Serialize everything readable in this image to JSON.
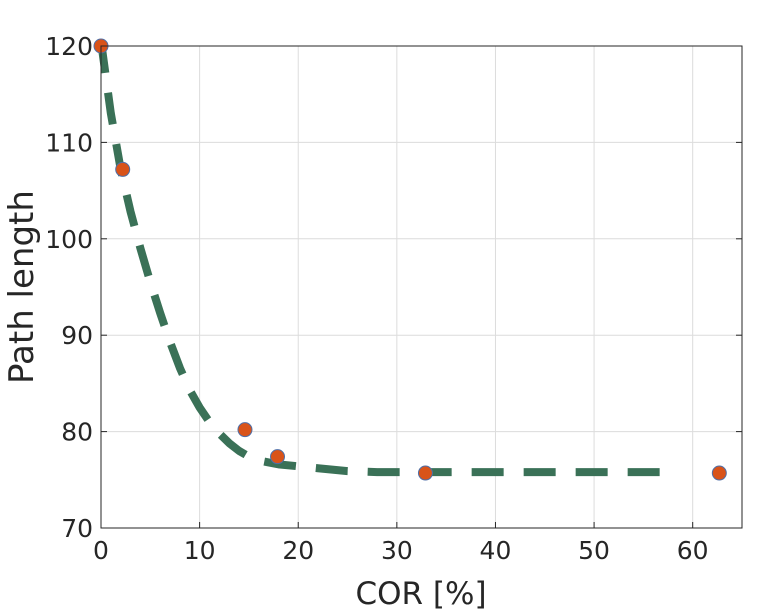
{
  "chart_data": {
    "type": "line",
    "xlabel": "COR [%]",
    "ylabel": "Path length",
    "xlim": [
      0,
      65
    ],
    "ylim": [
      70,
      120
    ],
    "xticks": [
      0,
      10,
      20,
      30,
      40,
      50,
      60
    ],
    "yticks": [
      70,
      80,
      90,
      100,
      110,
      120
    ],
    "grid": true,
    "series": [
      {
        "kind": "fitted-curve",
        "style": "dashed",
        "color": "#3a7157",
        "x": [
          0,
          1,
          2,
          3,
          4,
          5,
          6,
          7,
          8,
          9,
          10,
          11,
          12,
          13,
          14,
          15,
          16,
          17,
          18,
          20,
          22,
          25,
          28,
          30,
          33,
          36,
          40,
          45,
          50,
          55,
          58
        ],
        "y": [
          120.5,
          113.0,
          107.2,
          102.8,
          99.0,
          95.5,
          92.3,
          89.3,
          86.6,
          84.3,
          82.5,
          81.0,
          79.8,
          78.8,
          78.0,
          77.4,
          77.0,
          76.8,
          76.6,
          76.4,
          76.2,
          75.9,
          75.8,
          75.8,
          75.8,
          75.8,
          75.8,
          75.8,
          75.8,
          75.8,
          75.8
        ]
      },
      {
        "kind": "points",
        "color": "#d95319",
        "edge_color": "#4f6fa8",
        "x": [
          0,
          2.2,
          14.6,
          17.9,
          32.9,
          62.7
        ],
        "y": [
          120.0,
          107.2,
          80.2,
          77.4,
          75.7,
          75.7
        ]
      }
    ]
  }
}
